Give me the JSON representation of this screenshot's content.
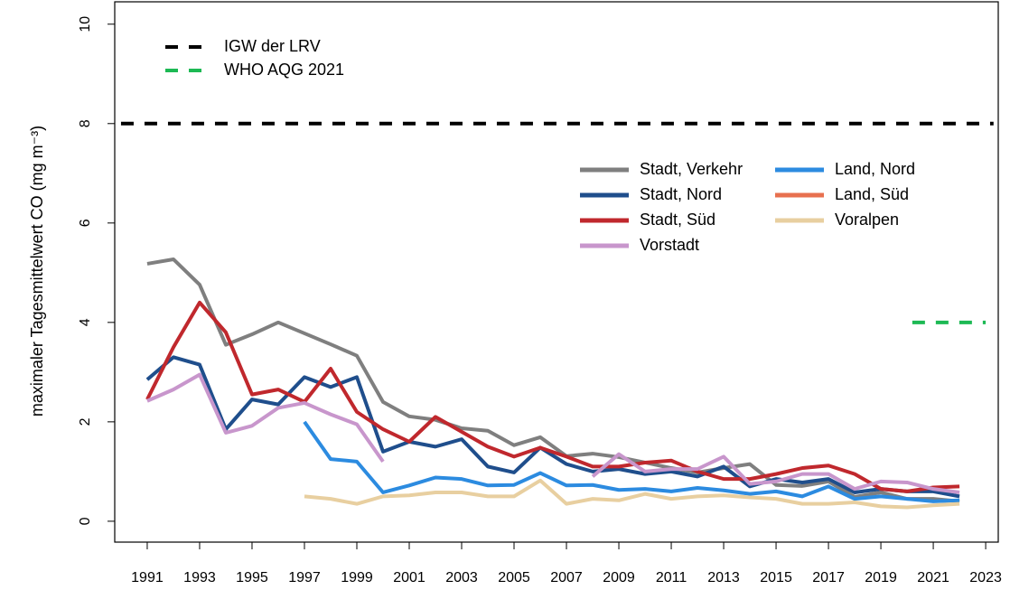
{
  "chart_data": {
    "type": "line",
    "ylabel": "maximaler Tagesmittelwert CO (mg m⁻³)",
    "x": [
      1991,
      1992,
      1993,
      1994,
      1995,
      1996,
      1997,
      1998,
      1999,
      2000,
      2001,
      2002,
      2003,
      2004,
      2005,
      2006,
      2007,
      2008,
      2009,
      2010,
      2011,
      2012,
      2013,
      2014,
      2015,
      2016,
      2017,
      2018,
      2019,
      2020,
      2021,
      2022
    ],
    "xlim": [
      1989.76,
      2023.48
    ],
    "xticks": [
      1991,
      1993,
      1995,
      1997,
      1999,
      2001,
      2003,
      2005,
      2007,
      2009,
      2011,
      2013,
      2015,
      2017,
      2019,
      2021,
      2023
    ],
    "ylim": [
      -0.42,
      10.45
    ],
    "yticks": [
      0,
      2,
      4,
      6,
      8,
      10
    ],
    "reference_lines": [
      {
        "name": "IGW der LRV",
        "color": "#000000",
        "value": 8,
        "x": [
          1990,
          2023.3
        ]
      },
      {
        "name": "WHO AQG 2021",
        "color": "#1db954",
        "value": 4,
        "x": [
          2020.2,
          2023
        ]
      }
    ],
    "series": [
      {
        "name": "Stadt, Verkehr",
        "color": "#7f7f7f",
        "values": [
          5.18,
          5.27,
          4.76,
          3.55,
          3.76,
          4.0,
          3.78,
          3.56,
          3.33,
          2.4,
          2.11,
          2.04,
          1.87,
          1.82,
          1.53,
          1.69,
          1.31,
          1.36,
          1.29,
          1.18,
          1.07,
          0.98,
          1.07,
          1.15,
          0.73,
          0.71,
          0.8,
          0.49,
          0.58,
          0.45,
          0.45,
          0.4
        ]
      },
      {
        "name": "Stadt, Nord",
        "color": "#1f4e8c",
        "values": [
          2.85,
          3.3,
          3.15,
          1.85,
          2.45,
          2.35,
          2.9,
          2.7,
          2.9,
          1.4,
          1.6,
          1.5,
          1.65,
          1.1,
          0.98,
          1.48,
          1.15,
          1.0,
          1.05,
          0.95,
          1.0,
          0.9,
          1.1,
          0.7,
          0.85,
          0.78,
          0.85,
          0.58,
          0.65,
          0.6,
          0.6,
          0.5
        ]
      },
      {
        "name": "Stadt, Süd",
        "color": "#c0282d",
        "values": [
          2.45,
          3.5,
          4.4,
          3.8,
          2.55,
          2.65,
          2.4,
          3.07,
          2.2,
          1.85,
          1.6,
          2.1,
          1.8,
          1.5,
          1.3,
          1.48,
          1.3,
          1.1,
          1.1,
          1.18,
          1.22,
          1.0,
          0.85,
          0.85,
          0.95,
          1.07,
          1.12,
          0.95,
          0.65,
          0.6,
          0.68,
          0.7
        ]
      },
      {
        "name": "Vorstadt",
        "color": "#c896cc",
        "values": [
          2.42,
          2.65,
          2.95,
          1.78,
          1.92,
          2.28,
          2.38,
          2.15,
          1.95,
          1.2,
          null,
          null,
          null,
          null,
          null,
          null,
          null,
          0.9,
          1.35,
          1.0,
          1.05,
          1.05,
          1.3,
          0.75,
          0.8,
          0.95,
          0.95,
          0.65,
          0.8,
          0.78,
          0.65,
          0.58
        ]
      },
      {
        "name": "Land, Nord",
        "color": "#2c8be0",
        "values": [
          null,
          null,
          null,
          null,
          null,
          null,
          2.0,
          1.25,
          1.2,
          0.58,
          0.72,
          0.88,
          0.85,
          0.72,
          0.73,
          0.97,
          0.72,
          0.73,
          0.63,
          0.65,
          0.6,
          0.67,
          0.62,
          0.55,
          0.6,
          0.5,
          0.7,
          0.45,
          0.5,
          0.45,
          0.4,
          0.42
        ]
      },
      {
        "name": "Land, Süd",
        "color": "#e8704f",
        "values": [
          null,
          null,
          null,
          null,
          null,
          null,
          null,
          null,
          null,
          null,
          null,
          null,
          null,
          null,
          null,
          null,
          null,
          null,
          null,
          null,
          null,
          null,
          null,
          null,
          null,
          null,
          null,
          null,
          null,
          null,
          null,
          null
        ]
      },
      {
        "name": "Voralpen",
        "color": "#e8cfa0",
        "values": [
          null,
          null,
          null,
          null,
          null,
          null,
          0.5,
          0.45,
          0.35,
          0.5,
          0.52,
          0.58,
          0.58,
          0.5,
          0.5,
          0.82,
          0.35,
          0.45,
          0.42,
          0.55,
          0.45,
          0.5,
          0.52,
          0.48,
          0.45,
          0.35,
          0.35,
          0.38,
          0.3,
          0.28,
          0.32,
          0.35
        ]
      }
    ]
  }
}
